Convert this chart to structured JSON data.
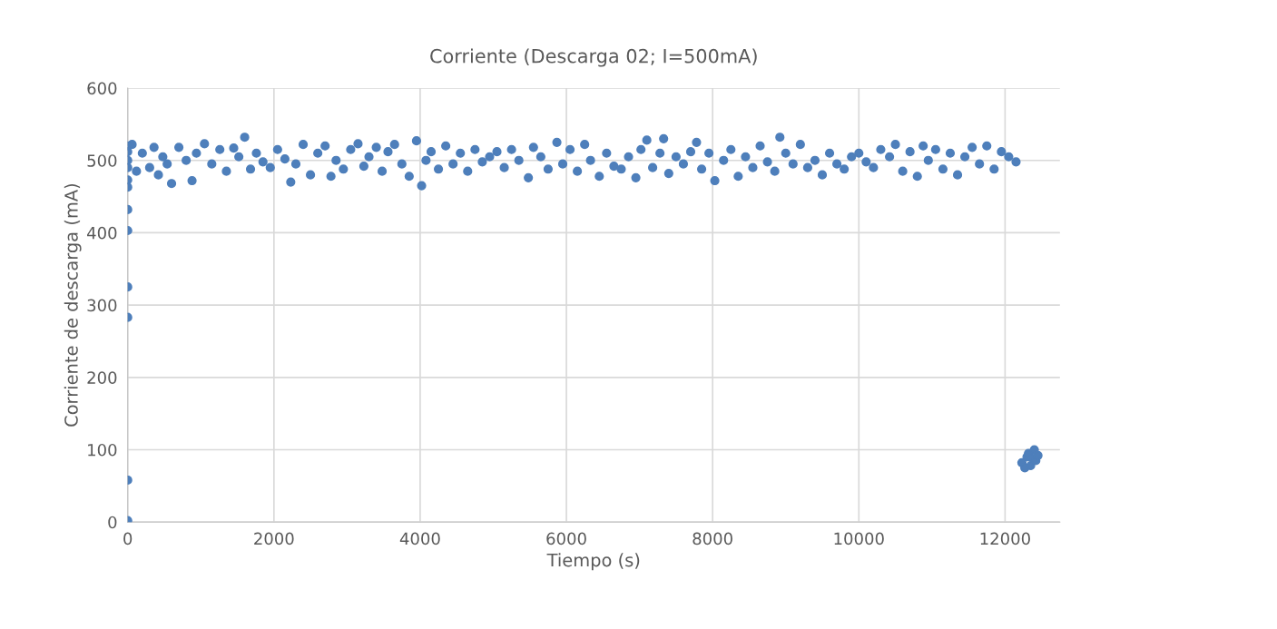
{
  "chart_data": {
    "type": "scatter",
    "title": "Corriente (Descarga 02; I=500mA)",
    "xlabel": "Tiempo (s)",
    "ylabel": "Corriente de descarga (mA)",
    "xlim": [
      0,
      12750
    ],
    "xticks": [
      0,
      2000,
      4000,
      6000,
      8000,
      10000,
      12000
    ],
    "ylim": [
      0,
      600
    ],
    "yticks": [
      0,
      100,
      200,
      300,
      400,
      500,
      600
    ],
    "grid": true,
    "marker": "circle",
    "legend": false,
    "series": [
      {
        "color": "#4e7fbb",
        "x": [
          0,
          0,
          0,
          0,
          0,
          0,
          0,
          0,
          0,
          0,
          0,
          0,
          60,
          120,
          200,
          300,
          360,
          420,
          480,
          540,
          600,
          700,
          800,
          880,
          940,
          1050,
          1150,
          1260,
          1350,
          1450,
          1520,
          1600,
          1680,
          1760,
          1850,
          1950,
          2050,
          2150,
          2230,
          2300,
          2400,
          2500,
          2600,
          2700,
          2780,
          2850,
          2950,
          3050,
          3150,
          3230,
          3300,
          3400,
          3480,
          3560,
          3650,
          3750,
          3850,
          3950,
          4020,
          4080,
          4150,
          4250,
          4350,
          4450,
          4550,
          4650,
          4750,
          4850,
          4950,
          5050,
          5150,
          5250,
          5350,
          5480,
          5550,
          5650,
          5750,
          5870,
          5950,
          6050,
          6150,
          6250,
          6330,
          6450,
          6550,
          6650,
          6750,
          6850,
          6950,
          7020,
          7100,
          7180,
          7280,
          7330,
          7400,
          7500,
          7600,
          7700,
          7780,
          7850,
          7950,
          8030,
          8150,
          8250,
          8350,
          8450,
          8550,
          8650,
          8750,
          8850,
          8920,
          9000,
          9100,
          9200,
          9300,
          9400,
          9500,
          9600,
          9700,
          9800,
          9900,
          10000,
          10100,
          10200,
          10300,
          10420,
          10500,
          10600,
          10700,
          10800,
          10880,
          10950,
          11050,
          11150,
          11250,
          11350,
          11450,
          11550,
          11650,
          11750,
          11850,
          11950,
          12050,
          12150,
          12230,
          12270,
          12300,
          12320,
          12350,
          12380,
          12400,
          12420,
          12450
        ],
        "values": [
          2,
          58,
          283,
          325,
          403,
          432,
          463,
          473,
          490,
          500,
          512,
          520,
          522,
          485,
          510,
          490,
          518,
          480,
          505,
          495,
          468,
          518,
          500,
          472,
          510,
          523,
          495,
          515,
          485,
          517,
          505,
          532,
          488,
          510,
          498,
          490,
          515,
          502,
          470,
          495,
          522,
          480,
          510,
          520,
          478,
          500,
          488,
          515,
          523,
          492,
          505,
          518,
          485,
          512,
          522,
          495,
          478,
          527,
          465,
          500,
          512,
          488,
          520,
          495,
          510,
          485,
          515,
          498,
          505,
          512,
          490,
          515,
          500,
          476,
          518,
          505,
          488,
          525,
          495,
          515,
          485,
          522,
          500,
          478,
          510,
          492,
          488,
          505,
          476,
          515,
          528,
          490,
          510,
          530,
          482,
          505,
          495,
          512,
          525,
          488,
          510,
          472,
          500,
          515,
          478,
          505,
          490,
          520,
          498,
          485,
          532,
          510,
          495,
          522,
          490,
          500,
          480,
          510,
          495,
          488,
          505,
          510,
          498,
          490,
          515,
          505,
          522,
          485,
          512,
          478,
          520,
          500,
          515,
          488,
          510,
          480,
          505,
          518,
          495,
          520,
          488,
          512,
          505,
          498,
          82,
          75,
          90,
          95,
          78,
          88,
          100,
          85,
          92
        ]
      }
    ]
  }
}
